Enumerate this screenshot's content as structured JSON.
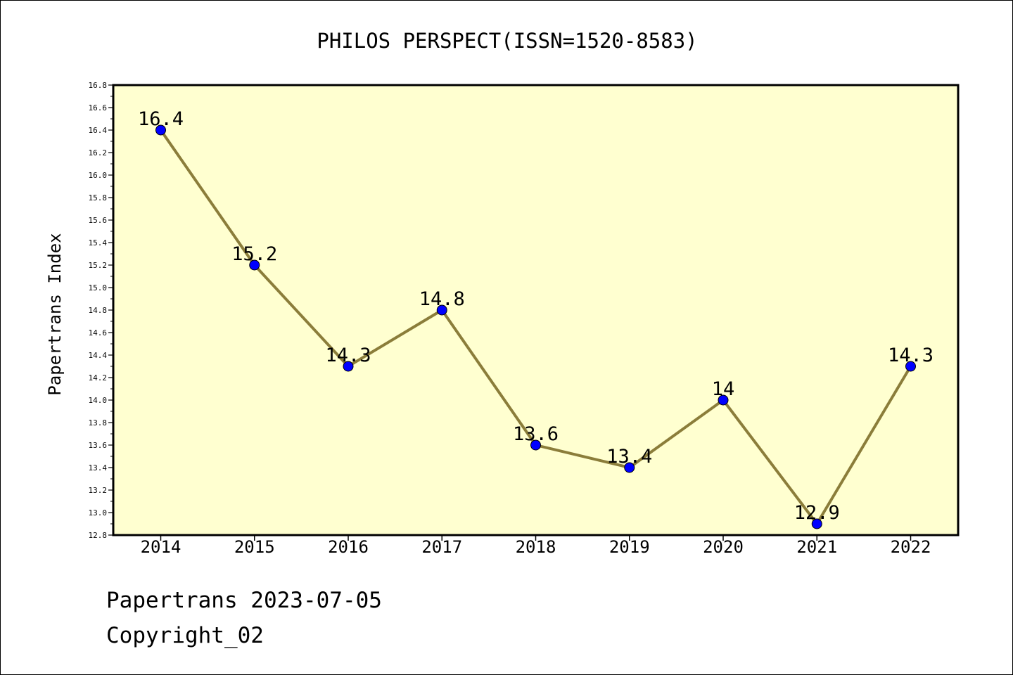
{
  "chart_data": {
    "type": "line",
    "title": "PHILOS PERSPECT(ISSN=1520-8583)",
    "xlabel": "",
    "ylabel": "Papertrans Index",
    "categories": [
      "2014",
      "2015",
      "2016",
      "2017",
      "2018",
      "2019",
      "2020",
      "2021",
      "2022"
    ],
    "series": [
      {
        "values": [
          16.4,
          15.2,
          14.3,
          14.8,
          13.6,
          13.4,
          14.0,
          12.9,
          14.3
        ],
        "data_labels": [
          "16.4",
          "15.2",
          "14.3",
          "14.8",
          "13.6",
          "13.4",
          "14",
          "12.9",
          "14.3"
        ],
        "line_color": "#8b7d3a",
        "marker_color": "#0000ff"
      }
    ],
    "ylim": [
      12.8,
      16.8
    ],
    "y_ticks": [
      "12.8",
      "13.0",
      "13.2",
      "13.4",
      "13.6",
      "13.8",
      "14.0",
      "14.2",
      "14.4",
      "14.6",
      "14.8",
      "15.0",
      "15.2",
      "15.4",
      "15.6",
      "15.8",
      "16.0",
      "16.2",
      "16.4",
      "16.6",
      "16.8"
    ],
    "grid": false,
    "legend": "none",
    "plot_background": "#ffffd0"
  },
  "footer": {
    "date_line": "Papertrans 2023-07-05",
    "copyright_line": "Copyright_02"
  }
}
